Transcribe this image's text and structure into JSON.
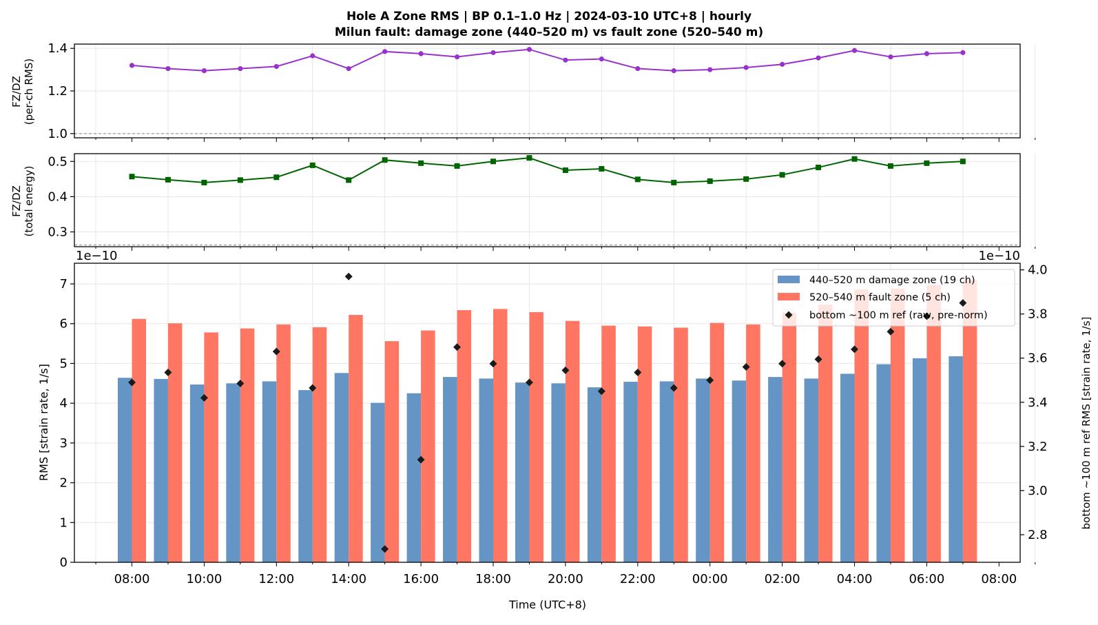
{
  "chart_data": [
    {
      "type": "line",
      "panel": "ratio-per-channel",
      "title": "Hole A Zone RMS  |  BP 0.1–1.0 Hz  |  2024-03-10 UTC+8  |  hourly",
      "subtitle": "Milun fault: damage zone (440–520 m) vs fault zone (520–540 m)",
      "ylabel": "FZ/DZ",
      "ylabel2": "(per-ch RMS)",
      "ylim": [
        0.98,
        1.42
      ],
      "yticks": [
        "1.0",
        "1.2",
        "1.4"
      ],
      "reference_line": 1.0,
      "color": "#9932cc",
      "x": [
        "08:00",
        "09:00",
        "10:00",
        "11:00",
        "12:00",
        "13:00",
        "14:00",
        "15:00",
        "16:00",
        "17:00",
        "18:00",
        "19:00",
        "20:00",
        "21:00",
        "22:00",
        "23:00",
        "00:00",
        "01:00",
        "02:00",
        "03:00",
        "04:00",
        "05:00",
        "06:00",
        "07:00"
      ],
      "values": [
        1.32,
        1.305,
        1.295,
        1.305,
        1.315,
        1.365,
        1.305,
        1.385,
        1.375,
        1.36,
        1.38,
        1.395,
        1.345,
        1.35,
        1.305,
        1.295,
        1.3,
        1.31,
        1.325,
        1.355,
        1.39,
        1.36,
        1.375,
        1.38
      ],
      "grid": true
    },
    {
      "type": "line",
      "panel": "ratio-total-energy",
      "ylabel": "FZ/DZ",
      "ylabel2": "(total energy)",
      "ylim": [
        0.258,
        0.522
      ],
      "yticks": [
        "0.3",
        "0.4",
        "0.5"
      ],
      "reference_line": 0.263,
      "color": "#006400",
      "values": [
        0.457,
        0.448,
        0.44,
        0.447,
        0.455,
        0.489,
        0.447,
        0.504,
        0.495,
        0.487,
        0.5,
        0.51,
        0.475,
        0.479,
        0.449,
        0.44,
        0.444,
        0.45,
        0.462,
        0.483,
        0.507,
        0.487,
        0.495,
        0.5
      ],
      "grid": true
    },
    {
      "type": "bar",
      "panel": "zone-rms",
      "xlabel": "Time (UTC+8)",
      "ylabel": "RMS  [strain rate, 1/s]",
      "y2label": "bottom ~100 m ref RMS  [strain rate, 1/s]",
      "scale_label_left": "1e−10",
      "scale_label_right": "1e−10",
      "ylim": [
        0,
        7.52
      ],
      "yticks": [
        "0",
        "1",
        "2",
        "3",
        "4",
        "5",
        "6",
        "7"
      ],
      "y2lim": [
        2.675,
        4.03
      ],
      "y2ticks": [
        "2.8",
        "3.0",
        "3.2",
        "3.4",
        "3.6",
        "3.8",
        "4.0"
      ],
      "xticks": [
        "08:00",
        "10:00",
        "12:00",
        "14:00",
        "16:00",
        "18:00",
        "20:00",
        "22:00",
        "00:00",
        "02:00",
        "04:00",
        "06:00",
        "08:00"
      ],
      "legend_position": "top-right",
      "grid": true,
      "series": [
        {
          "name": "440–520 m  damage zone (19 ch)",
          "color": "#6495c5",
          "values": [
            4.64,
            4.61,
            4.47,
            4.5,
            4.55,
            4.33,
            4.76,
            4.01,
            4.25,
            4.66,
            4.62,
            4.52,
            4.5,
            4.4,
            4.54,
            4.55,
            4.62,
            4.57,
            4.66,
            4.62,
            4.74,
            4.98,
            5.13,
            5.18
          ]
        },
        {
          "name": "520–540 m  fault zone (5 ch)",
          "color": "#ff7763",
          "values": [
            6.12,
            6.01,
            5.78,
            5.88,
            5.98,
            5.91,
            6.22,
            5.56,
            5.83,
            6.34,
            6.37,
            6.29,
            6.07,
            5.95,
            5.93,
            5.9,
            6.02,
            5.98,
            6.27,
            6.48,
            6.86,
            6.88,
            6.97,
            7.1
          ]
        },
        {
          "name": "bottom ~100 m ref (raw, pre-norm)",
          "color": "#1a1a1a",
          "axis": "right",
          "values": [
            3.49,
            3.535,
            3.42,
            3.485,
            3.63,
            3.465,
            3.97,
            2.735,
            3.14,
            3.65,
            3.575,
            3.49,
            3.545,
            3.45,
            3.535,
            3.465,
            3.5,
            3.56,
            3.575,
            3.595,
            3.64,
            3.72,
            3.79,
            3.85
          ]
        }
      ]
    }
  ]
}
